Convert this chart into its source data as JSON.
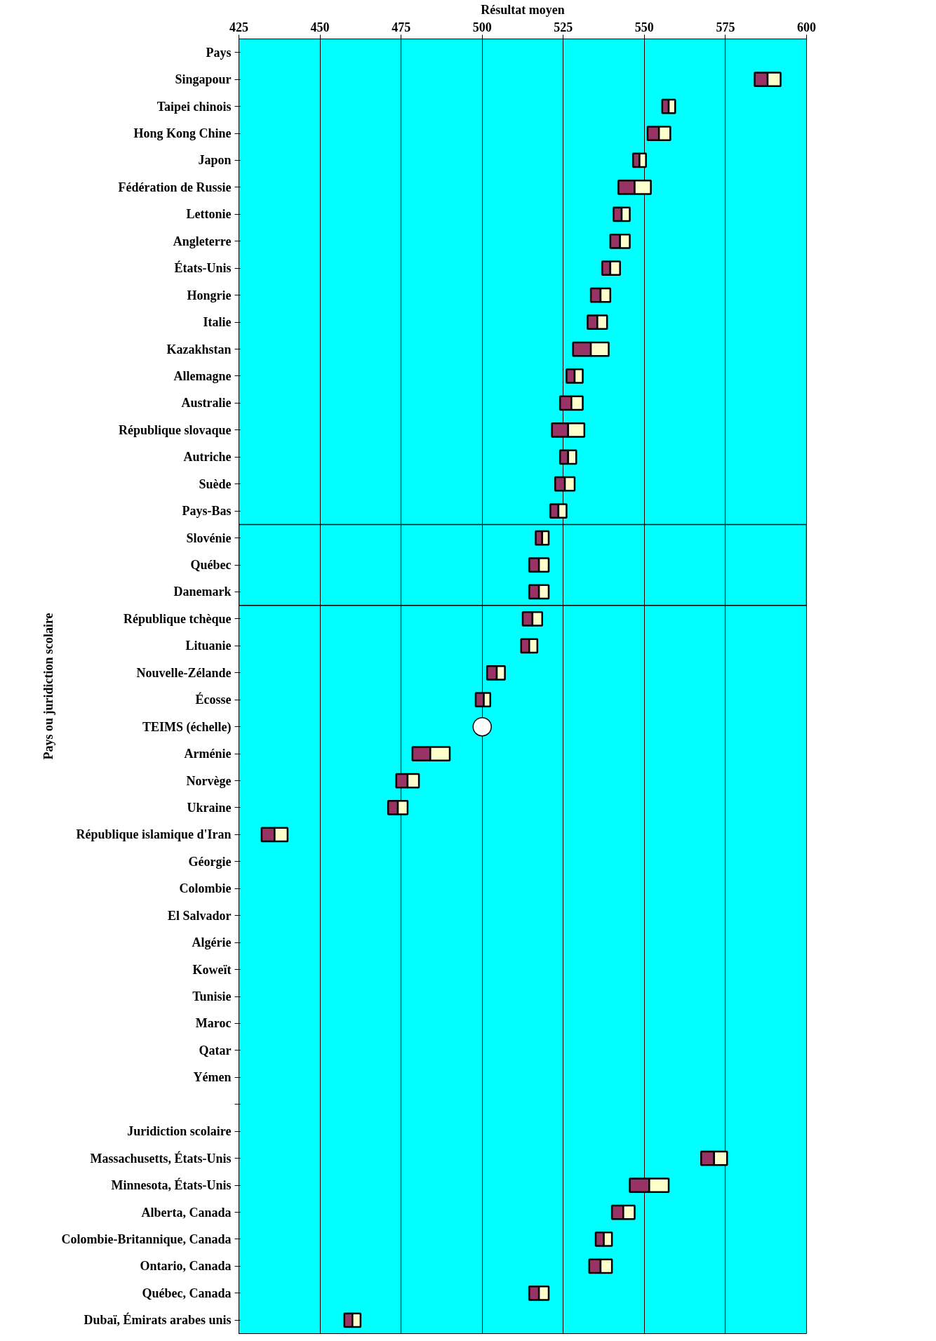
{
  "chart_data": {
    "type": "bar",
    "orientation": "horizontal",
    "xlabel": "Résultat moyen",
    "ylabel": "Pays ou juridiction scolaire",
    "categories": [
      "Pays",
      "Singapour",
      "Taipei chinois",
      "Hong Kong Chine",
      "Japon",
      "Fédération de Russie",
      "Lettonie",
      "Angleterre",
      "États-Unis",
      "Hongrie",
      "Italie",
      "Kazakhstan",
      "Allemagne",
      "Australie",
      "République slovaque",
      "Autriche",
      "Suède",
      "Pays-Bas",
      "Slovénie",
      "Québec",
      "Danemark",
      "République tchèque",
      "Lituanie",
      "Nouvelle-Zélande",
      "Écosse",
      "TEIMS (échelle)",
      "Arménie",
      "Norvège",
      "Ukraine",
      "République islamique d'Iran",
      "Géorgie",
      "Colombie",
      "El Salvador",
      "Algérie",
      "Koweït",
      "Tunisie",
      "Maroc",
      "Qatar",
      "Yémen",
      null,
      "Juridiction scolaire",
      "Massachusetts, États-Unis",
      "Minnesota, États-Unis",
      "Alberta, Canada",
      "Colombie-Britannique, Canada",
      "Ontario, Canada",
      "Québec, Canada",
      "Dubaï, Émirats arabes unis"
    ],
    "series": [
      {
        "color": "#993366",
        "base": [
          null,
          584,
          555.5,
          551,
          546.5,
          542,
          540.5,
          539.5,
          537,
          533.5,
          532.5,
          528,
          526,
          524,
          521.5,
          524,
          522.5,
          521,
          516.5,
          514.5,
          514.5,
          512.5,
          512,
          501.5,
          498,
          null,
          478.5,
          473.5,
          471,
          432,
          null,
          null,
          null,
          null,
          null,
          null,
          null,
          null,
          null,
          null,
          null,
          567.5,
          545.5,
          540,
          535,
          533,
          514.5,
          457.5
        ],
        "values": [
          null,
          4,
          2,
          3.5,
          2,
          5,
          2.5,
          3,
          2.5,
          3,
          3,
          5.5,
          2.5,
          3.5,
          5,
          2.5,
          3,
          2.5,
          2,
          3,
          3,
          3,
          2.5,
          3,
          2.5,
          null,
          5.5,
          3.5,
          3,
          4,
          null,
          null,
          null,
          null,
          null,
          null,
          null,
          null,
          null,
          null,
          null,
          4,
          6,
          3.5,
          2.5,
          3.5,
          3,
          2.5
        ]
      },
      {
        "color": "#ffffcc",
        "base": [
          null,
          588,
          557.5,
          554.5,
          548.5,
          547,
          543,
          542.5,
          539.5,
          536.5,
          535.5,
          533.5,
          528.5,
          527.5,
          526.5,
          526.5,
          525.5,
          523.5,
          518.5,
          517.5,
          517.5,
          515.5,
          514.5,
          504.5,
          500.5,
          null,
          484,
          477,
          474,
          436,
          null,
          null,
          null,
          null,
          null,
          null,
          null,
          null,
          null,
          null,
          null,
          571.5,
          551.5,
          543.5,
          537.5,
          536.5,
          517.5,
          460
        ],
        "values": [
          null,
          4,
          2,
          3.5,
          2,
          5,
          2.5,
          3,
          3,
          3,
          3,
          5.5,
          2.5,
          3.5,
          5,
          2.5,
          3,
          2.5,
          2,
          3,
          3,
          3,
          2.5,
          2.5,
          2,
          null,
          6,
          3.5,
          3,
          4,
          null,
          null,
          null,
          null,
          null,
          null,
          null,
          null,
          null,
          null,
          null,
          4,
          6,
          3.5,
          2.5,
          3.5,
          3,
          2.5
        ]
      },
      {
        "type": "scatter",
        "marker": "circle",
        "color": "#ffffff",
        "values": [
          null,
          null,
          null,
          null,
          null,
          null,
          null,
          null,
          null,
          null,
          null,
          null,
          null,
          null,
          null,
          null,
          null,
          null,
          null,
          null,
          null,
          null,
          null,
          null,
          null,
          500,
          null,
          null,
          null,
          null,
          null,
          null,
          null,
          null,
          null,
          null,
          null,
          null,
          null,
          null,
          null,
          null,
          null,
          null,
          null,
          null,
          null,
          null
        ]
      }
    ],
    "xlim": [
      425,
      600
    ],
    "xticks": [
      425,
      450,
      475,
      500,
      525,
      550,
      575,
      600
    ],
    "grid": "x"
  }
}
